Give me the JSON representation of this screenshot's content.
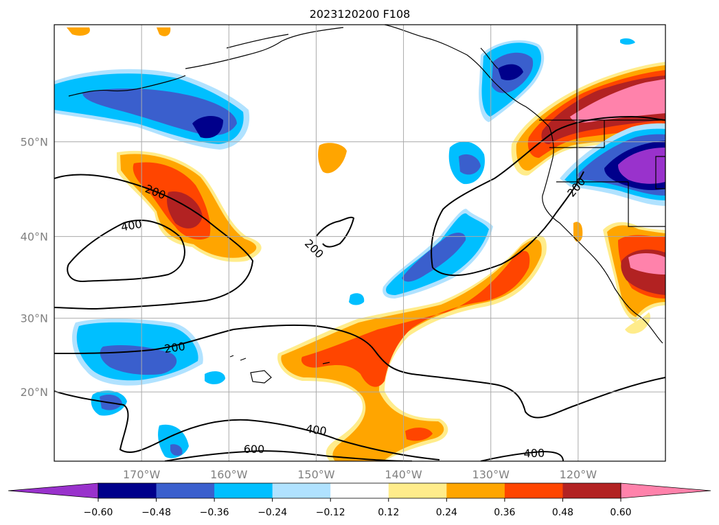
{
  "title": "2023120200 F108",
  "map": {
    "lon_range": [
      -180,
      -110
    ],
    "lat_range": [
      10,
      60
    ],
    "gridlines": true,
    "lon_tick_labels": [
      "170°W",
      "160°W",
      "150°W",
      "140°W",
      "130°W",
      "120°W"
    ],
    "lat_tick_labels": [
      "50°N",
      "40°N",
      "30°N",
      "20°N"
    ],
    "contour_labels": [
      "200",
      "400",
      "200",
      "200",
      "200",
      "400",
      "600",
      "400"
    ],
    "contour_color": "#000000"
  },
  "colorbar": {
    "orientation": "horizontal",
    "extend": "both",
    "tick_labels": [
      "−0.60",
      "−0.48",
      "−0.36",
      "−0.24",
      "−0.12",
      "0.12",
      "0.24",
      "0.36",
      "0.48",
      "0.60"
    ],
    "colors": [
      "#9932cc",
      "#00008b",
      "#3a5fcd",
      "#00bfff",
      "#b0e2ff",
      "#ffffff",
      "#ffec8b",
      "#ffa500",
      "#ff4500",
      "#b22222",
      "#ff82ab"
    ]
  }
}
